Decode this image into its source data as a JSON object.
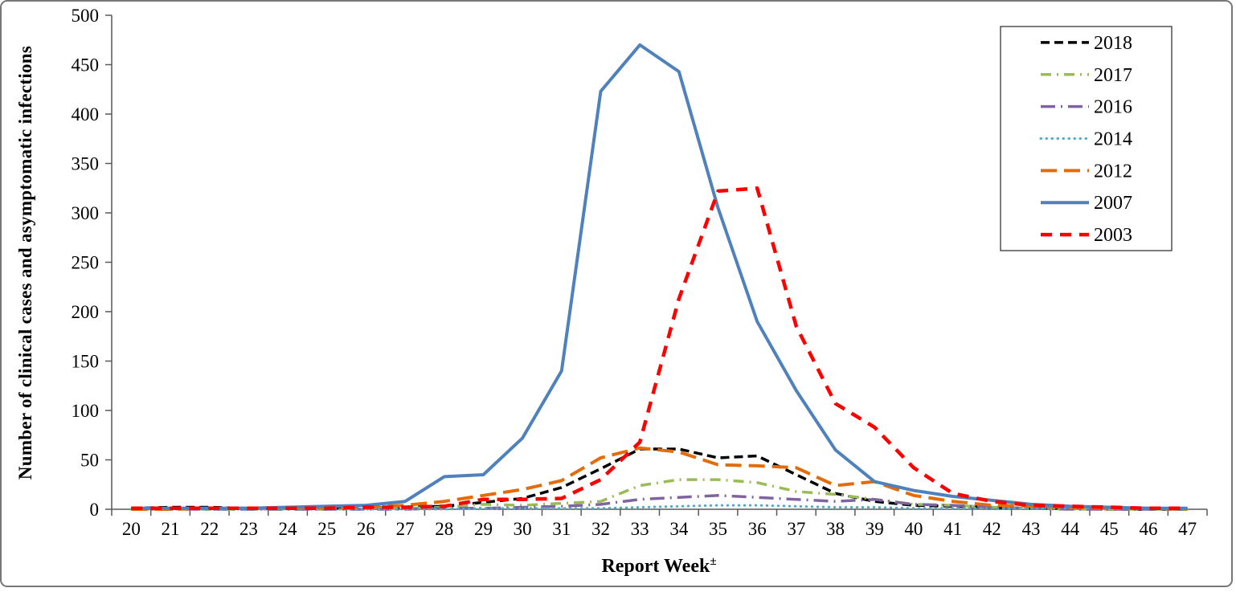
{
  "chart_data": {
    "type": "line",
    "title": "",
    "xlabel": "Report Week",
    "xlabel_superscript": "±",
    "ylabel": "Number of clinical cases and asymptomatic infections",
    "x": [
      20,
      21,
      22,
      23,
      24,
      25,
      26,
      27,
      28,
      29,
      30,
      31,
      32,
      33,
      34,
      35,
      36,
      37,
      38,
      39,
      40,
      41,
      42,
      43,
      44,
      45,
      46,
      47
    ],
    "ylim": [
      0,
      500
    ],
    "ytick_step": 50,
    "grid": false,
    "legend_position": "top-right",
    "axis_color": "#595959",
    "series": [
      {
        "name": "2018",
        "color": "#000000",
        "dash": "dash",
        "width": 3.5,
        "values": [
          1,
          2,
          2,
          1,
          1,
          1,
          1,
          2,
          3,
          7,
          11,
          22,
          41,
          61,
          61,
          52,
          54,
          35,
          16,
          8,
          4,
          3,
          2,
          1,
          1,
          0,
          0,
          0
        ]
      },
      {
        "name": "2017",
        "color": "#9BBB59",
        "dash": "dash-dot",
        "width": 3.5,
        "values": [
          0,
          0,
          0,
          0,
          0,
          0,
          1,
          1,
          2,
          5,
          4,
          6,
          8,
          24,
          30,
          30,
          27,
          18,
          15,
          10,
          5,
          4,
          2,
          1,
          0,
          0,
          0,
          0
        ]
      },
      {
        "name": "2016",
        "color": "#8064A2",
        "dash": "long-dash-dot",
        "width": 3.5,
        "values": [
          0,
          0,
          0,
          0,
          0,
          0,
          0,
          0,
          1,
          1,
          2,
          3,
          5,
          10,
          12,
          14,
          12,
          10,
          8,
          10,
          5,
          4,
          2,
          1,
          0,
          0,
          0,
          0
        ]
      },
      {
        "name": "2014",
        "color": "#4BACC6",
        "dash": "dot",
        "width": 3,
        "values": [
          0,
          0,
          0,
          0,
          0,
          0,
          0,
          0,
          0,
          1,
          1,
          1,
          1,
          2,
          3,
          4,
          4,
          3,
          2,
          2,
          1,
          1,
          1,
          1,
          1,
          1,
          0,
          0
        ]
      },
      {
        "name": "2012",
        "color": "#E36C09",
        "dash": "long-dash",
        "width": 4,
        "values": [
          0,
          0,
          1,
          1,
          1,
          1,
          2,
          4,
          8,
          14,
          20,
          29,
          52,
          62,
          58,
          45,
          44,
          42,
          24,
          28,
          14,
          8,
          4,
          3,
          2,
          1,
          1,
          0
        ]
      },
      {
        "name": "2007",
        "color": "#4F81BD",
        "dash": "solid",
        "width": 4,
        "values": [
          1,
          1,
          1,
          1,
          2,
          3,
          4,
          8,
          33,
          35,
          72,
          140,
          423,
          470,
          443,
          305,
          190,
          120,
          60,
          28,
          19,
          13,
          9,
          5,
          3,
          2,
          1,
          1
        ]
      },
      {
        "name": "2003",
        "color": "#FF0000",
        "dash": "red-dash",
        "width": 4.5,
        "values": [
          1,
          1,
          1,
          1,
          1,
          1,
          2,
          2,
          3,
          10,
          10,
          11,
          30,
          68,
          213,
          322,
          325,
          185,
          107,
          83,
          42,
          16,
          8,
          4,
          3,
          2,
          1,
          1
        ]
      }
    ]
  }
}
